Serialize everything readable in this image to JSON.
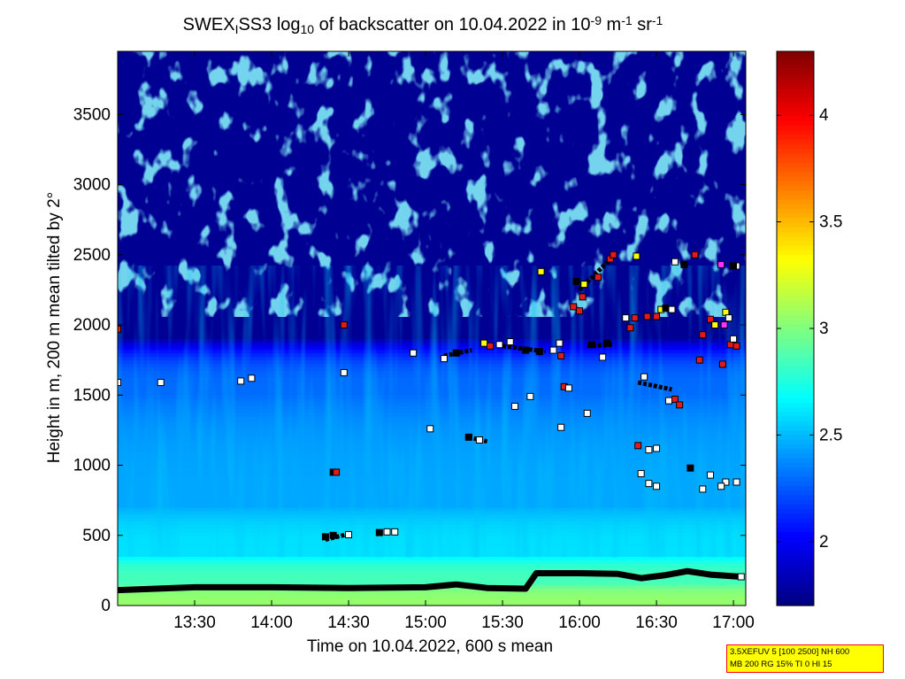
{
  "chart_data": {
    "type": "heatmap",
    "title": {
      "parts": [
        "SWEX",
        "I",
        "SS3 log",
        "10",
        " of backscatter on 10.04.2022 in 10",
        "-9",
        " m",
        "-1",
        " sr",
        "-1"
      ],
      "styles": [
        "n",
        "sub",
        "n",
        "sub",
        "n",
        "sup",
        "n",
        "sup",
        "n",
        "sup"
      ]
    },
    "xlabel": "Time on 10.04.2022, 600 s mean",
    "ylabel": "Height in m, 200 m mean tilted by 2°",
    "x_range_hours": [
      13.0,
      17.08
    ],
    "y_range_m": [
      0,
      3950
    ],
    "x_ticks": [
      {
        "label": "13:30",
        "value": 13.5
      },
      {
        "label": "14:00",
        "value": 14.0
      },
      {
        "label": "14:30",
        "value": 14.5
      },
      {
        "label": "15:00",
        "value": 15.0
      },
      {
        "label": "15:30",
        "value": 15.5
      },
      {
        "label": "16:00",
        "value": 16.0
      },
      {
        "label": "16:30",
        "value": 16.5
      },
      {
        "label": "17:00",
        "value": 17.0
      }
    ],
    "y_ticks": [
      {
        "label": "0",
        "value": 0
      },
      {
        "label": "500",
        "value": 500
      },
      {
        "label": "1000",
        "value": 1000
      },
      {
        "label": "1500",
        "value": 1500
      },
      {
        "label": "2000",
        "value": 2000
      },
      {
        "label": "2500",
        "value": 2500
      },
      {
        "label": "3000",
        "value": 3000
      },
      {
        "label": "3500",
        "value": 3500
      }
    ],
    "colorbar": {
      "range": [
        1.7,
        4.3
      ],
      "ticks": [
        {
          "label": "2",
          "value": 2.0
        },
        {
          "label": "2.5",
          "value": 2.5
        },
        {
          "label": "3",
          "value": 3.0
        },
        {
          "label": "3.5",
          "value": 3.5
        },
        {
          "label": "4",
          "value": 4.0
        }
      ]
    },
    "regions_description": {
      "bands": [
        {
          "y_from": 0,
          "y_to": 150,
          "value": 3.05
        },
        {
          "y_from": 150,
          "y_to": 350,
          "value": 2.85
        },
        {
          "y_from": 350,
          "y_to": 700,
          "value": 2.6
        },
        {
          "y_from": 700,
          "y_to": 1500,
          "value": 2.45
        },
        {
          "y_from": 1500,
          "y_to": 1900,
          "value": 2.3
        },
        {
          "y_from": 1900,
          "y_to": 3950,
          "value": 1.75
        }
      ]
    },
    "cloud_base_line": [
      [
        13.0,
        110
      ],
      [
        13.5,
        130
      ],
      [
        14.0,
        130
      ],
      [
        14.5,
        125
      ],
      [
        15.0,
        130
      ],
      [
        15.2,
        150
      ],
      [
        15.4,
        125
      ],
      [
        15.65,
        120
      ],
      [
        15.72,
        230
      ],
      [
        16.0,
        230
      ],
      [
        16.25,
        225
      ],
      [
        16.4,
        195
      ],
      [
        16.55,
        215
      ],
      [
        16.7,
        245
      ],
      [
        16.85,
        220
      ],
      [
        17.05,
        205
      ]
    ],
    "markers": [
      {
        "t": 13.0,
        "h": 1970,
        "c": "red"
      },
      {
        "t": 13.0,
        "h": 1590,
        "c": "white"
      },
      {
        "t": 13.28,
        "h": 1590,
        "c": "white"
      },
      {
        "t": 13.8,
        "h": 1600,
        "c": "white"
      },
      {
        "t": 13.87,
        "h": 1620,
        "c": "white"
      },
      {
        "t": 14.4,
        "h": 950,
        "c": "black"
      },
      {
        "t": 14.42,
        "h": 950,
        "c": "red"
      },
      {
        "t": 14.35,
        "h": 490,
        "c": "black"
      },
      {
        "t": 14.4,
        "h": 500,
        "c": "black"
      },
      {
        "t": 14.5,
        "h": 505,
        "c": "white"
      },
      {
        "t": 14.47,
        "h": 2000,
        "c": "red"
      },
      {
        "t": 14.47,
        "h": 1660,
        "c": "white"
      },
      {
        "t": 14.7,
        "h": 520,
        "c": "black"
      },
      {
        "t": 14.75,
        "h": 525,
        "c": "white"
      },
      {
        "t": 14.8,
        "h": 525,
        "c": "white"
      },
      {
        "t": 14.92,
        "h": 1800,
        "c": "white"
      },
      {
        "t": 15.03,
        "h": 1260,
        "c": "white"
      },
      {
        "t": 15.12,
        "h": 1760,
        "c": "white"
      },
      {
        "t": 15.2,
        "h": 1800,
        "c": "black"
      },
      {
        "t": 15.28,
        "h": 1200,
        "c": "black"
      },
      {
        "t": 15.35,
        "h": 1180,
        "c": "white"
      },
      {
        "t": 15.38,
        "h": 1870,
        "c": "yellow"
      },
      {
        "t": 15.42,
        "h": 1850,
        "c": "red"
      },
      {
        "t": 15.48,
        "h": 1860,
        "c": "white"
      },
      {
        "t": 15.55,
        "h": 1880,
        "c": "white"
      },
      {
        "t": 15.58,
        "h": 1420,
        "c": "white"
      },
      {
        "t": 15.68,
        "h": 1490,
        "c": "white"
      },
      {
        "t": 15.65,
        "h": 1820,
        "c": "black"
      },
      {
        "t": 15.74,
        "h": 1810,
        "c": "black"
      },
      {
        "t": 15.75,
        "h": 2380,
        "c": "yellow"
      },
      {
        "t": 15.83,
        "h": 1820,
        "c": "white"
      },
      {
        "t": 15.87,
        "h": 1870,
        "c": "white"
      },
      {
        "t": 15.88,
        "h": 1270,
        "c": "white"
      },
      {
        "t": 15.88,
        "h": 1780,
        "c": "red"
      },
      {
        "t": 15.9,
        "h": 1560,
        "c": "red"
      },
      {
        "t": 15.93,
        "h": 1550,
        "c": "white"
      },
      {
        "t": 15.96,
        "h": 2130,
        "c": "red"
      },
      {
        "t": 16.0,
        "h": 2100,
        "c": "red"
      },
      {
        "t": 16.02,
        "h": 2200,
        "c": "red"
      },
      {
        "t": 15.98,
        "h": 2310,
        "c": "black"
      },
      {
        "t": 16.03,
        "h": 2290,
        "c": "yellow"
      },
      {
        "t": 16.05,
        "h": 1370,
        "c": "white"
      },
      {
        "t": 16.08,
        "h": 1860,
        "c": "black"
      },
      {
        "t": 16.12,
        "h": 2340,
        "c": "red"
      },
      {
        "t": 16.18,
        "h": 1870,
        "c": "black"
      },
      {
        "t": 16.2,
        "h": 2470,
        "c": "red"
      },
      {
        "t": 16.22,
        "h": 2500,
        "c": "red"
      },
      {
        "t": 16.15,
        "h": 1770,
        "c": "white"
      },
      {
        "t": 16.3,
        "h": 2050,
        "c": "white"
      },
      {
        "t": 16.33,
        "h": 1980,
        "c": "red"
      },
      {
        "t": 16.37,
        "h": 2490,
        "c": "yellow"
      },
      {
        "t": 16.36,
        "h": 2050,
        "c": "red"
      },
      {
        "t": 16.42,
        "h": 1630,
        "c": "white"
      },
      {
        "t": 16.44,
        "h": 2060,
        "c": "red"
      },
      {
        "t": 16.5,
        "h": 2060,
        "c": "red"
      },
      {
        "t": 16.53,
        "h": 2110,
        "c": "yellow"
      },
      {
        "t": 16.56,
        "h": 2120,
        "c": "black"
      },
      {
        "t": 16.6,
        "h": 2110,
        "c": "white"
      },
      {
        "t": 16.38,
        "h": 1140,
        "c": "red"
      },
      {
        "t": 16.45,
        "h": 1110,
        "c": "white"
      },
      {
        "t": 16.5,
        "h": 1120,
        "c": "white"
      },
      {
        "t": 16.4,
        "h": 940,
        "c": "white"
      },
      {
        "t": 16.45,
        "h": 870,
        "c": "white"
      },
      {
        "t": 16.5,
        "h": 850,
        "c": "white"
      },
      {
        "t": 16.58,
        "h": 1460,
        "c": "white"
      },
      {
        "t": 16.62,
        "h": 1470,
        "c": "red"
      },
      {
        "t": 16.65,
        "h": 1430,
        "c": "red"
      },
      {
        "t": 16.62,
        "h": 2450,
        "c": "white"
      },
      {
        "t": 16.68,
        "h": 2430,
        "c": "black"
      },
      {
        "t": 16.72,
        "h": 980,
        "c": "black"
      },
      {
        "t": 16.75,
        "h": 2500,
        "c": "red"
      },
      {
        "t": 16.78,
        "h": 1750,
        "c": "red"
      },
      {
        "t": 16.8,
        "h": 1930,
        "c": "red"
      },
      {
        "t": 16.85,
        "h": 2040,
        "c": "red"
      },
      {
        "t": 16.88,
        "h": 2000,
        "c": "yellow"
      },
      {
        "t": 16.8,
        "h": 830,
        "c": "white"
      },
      {
        "t": 16.85,
        "h": 930,
        "c": "white"
      },
      {
        "t": 16.92,
        "h": 2430,
        "c": "magenta"
      },
      {
        "t": 16.95,
        "h": 2090,
        "c": "yellow"
      },
      {
        "t": 16.97,
        "h": 2050,
        "c": "white"
      },
      {
        "t": 16.94,
        "h": 2000,
        "c": "magenta"
      },
      {
        "t": 16.98,
        "h": 1860,
        "c": "red"
      },
      {
        "t": 17.0,
        "h": 1900,
        "c": "white"
      },
      {
        "t": 16.93,
        "h": 1720,
        "c": "red"
      },
      {
        "t": 16.95,
        "h": 880,
        "c": "white"
      },
      {
        "t": 16.92,
        "h": 850,
        "c": "white"
      },
      {
        "t": 17.02,
        "h": 880,
        "c": "white"
      },
      {
        "t": 17.02,
        "h": 2420,
        "c": "white"
      },
      {
        "t": 17.0,
        "h": 2420,
        "c": "black"
      },
      {
        "t": 17.02,
        "h": 1850,
        "c": "red"
      },
      {
        "t": 17.05,
        "h": 205,
        "c": "white"
      }
    ],
    "marker_line_segments": [
      {
        "from": [
          15.12,
          1780
        ],
        "to": [
          15.3,
          1820
        ]
      },
      {
        "from": [
          15.5,
          1850
        ],
        "to": [
          15.78,
          1810
        ]
      },
      {
        "from": [
          16.0,
          2250
        ],
        "to": [
          16.22,
          2490
        ]
      },
      {
        "from": [
          16.05,
          1850
        ],
        "to": [
          16.22,
          1860
        ]
      },
      {
        "from": [
          16.38,
          1590
        ],
        "to": [
          16.6,
          1540
        ]
      },
      {
        "from": [
          16.52,
          2120
        ],
        "to": [
          16.62,
          2110
        ]
      },
      {
        "from": [
          15.28,
          1200
        ],
        "to": [
          15.4,
          1170
        ]
      },
      {
        "from": [
          14.35,
          470
        ],
        "to": [
          14.5,
          510
        ]
      }
    ]
  },
  "info_box": {
    "line1": "3.5XEFUV 5 [100 2500] NH 600",
    "line2": "MB 200 RG 15% TI 0 HI 15"
  }
}
